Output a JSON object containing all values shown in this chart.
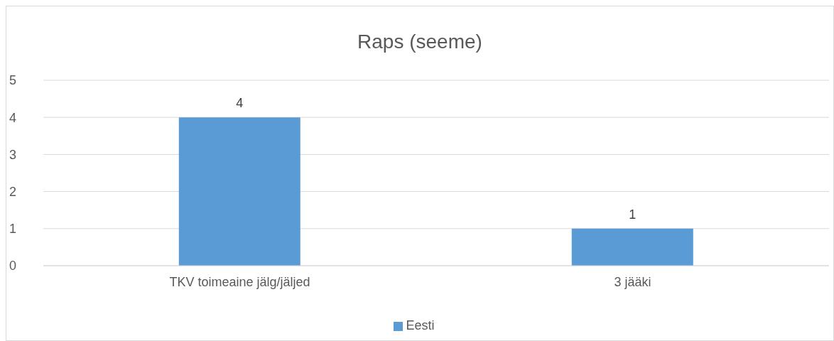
{
  "chart_data": {
    "type": "bar",
    "title": "Raps (seeme)",
    "categories": [
      "TKV toimeaine jälg/jäljed",
      "3 jääki"
    ],
    "series": [
      {
        "name": "Eesti",
        "color": "#5b9bd5",
        "values": [
          4,
          1
        ]
      }
    ],
    "ylim": [
      0,
      5
    ],
    "yticks": [
      0,
      1,
      2,
      3,
      4,
      5
    ],
    "grid": "y",
    "legend": "bottom",
    "data_labels": true
  }
}
